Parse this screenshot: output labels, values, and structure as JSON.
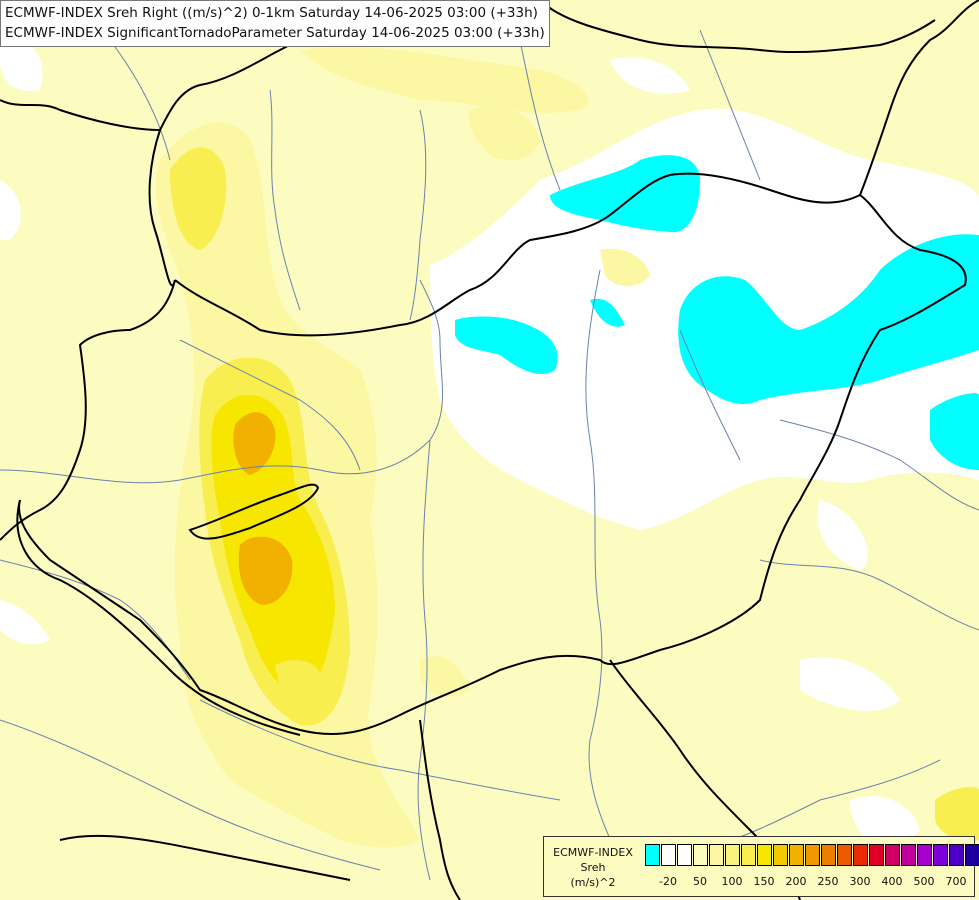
{
  "title_lines": [
    "ECMWF-INDEX Sreh Right ((m/s)^2) 0-1km Saturday 14-06-2025 03:00 (+33h)",
    "ECMWF-INDEX SignificantTornadoParameter Saturday 14-06-2025 03:00 (+33h)"
  ],
  "legend": {
    "label_lines": [
      "ECMWF-INDEX",
      "Sreh",
      "(m/s)^2"
    ],
    "colors": [
      "#00ffff",
      "#ffffff",
      "#ffffff",
      "#fcfcc0",
      "#fbf7a2",
      "#faf37c",
      "#f8ee50",
      "#f6e600",
      "#f4c800",
      "#f2b000",
      "#f09800",
      "#ee7e00",
      "#ec5a00",
      "#ea2a00",
      "#e00024",
      "#d00068",
      "#c2009e",
      "#a800d0",
      "#7e00d8",
      "#4c00c8",
      "#1a009e",
      "#000070"
    ],
    "ticks": [
      "-20",
      "50",
      "100",
      "150",
      "200",
      "250",
      "300",
      "400",
      "500",
      "700"
    ]
  },
  "palette": {
    "cyan": "#00ffff",
    "white": "#ffffff",
    "pale_yellow": "#fcfcc0",
    "light_yellow": "#fbf7a2",
    "mid_yellow": "#faf37c",
    "yellow": "#f8ee50",
    "bright_yellow": "#f6e600",
    "gold": "#f4c800",
    "orange": "#f2b000",
    "border": "#000000",
    "river": "#6a82ad"
  }
}
